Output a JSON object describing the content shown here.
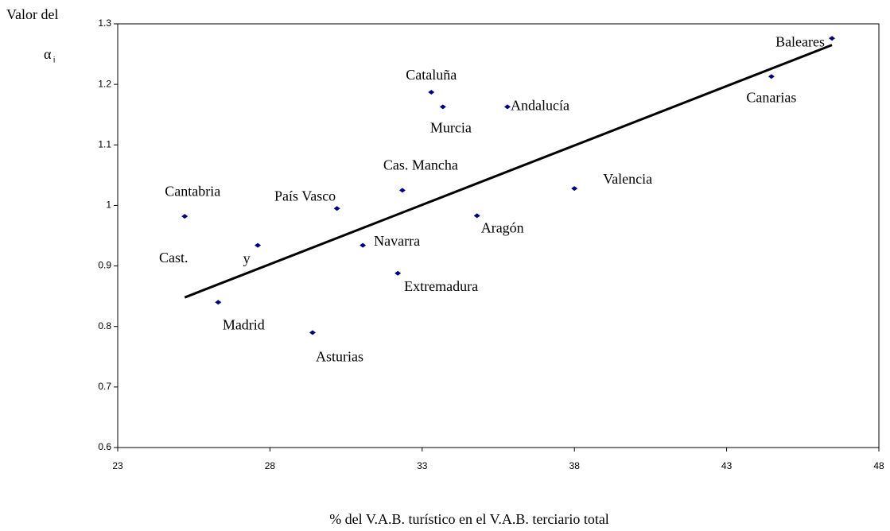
{
  "chart_data": {
    "type": "scatter",
    "y_label": "Valor del",
    "y_symbol": "α",
    "y_symbol_subscript": "i",
    "x_label": "% del V.A.B. turístico en el V.A.B. terciario total",
    "xlim": [
      23,
      48
    ],
    "xticks": [
      23,
      28,
      33,
      38,
      43,
      48
    ],
    "ylim": [
      0.6,
      1.3
    ],
    "yticks": [
      0.6,
      0.7,
      0.8,
      0.9,
      1,
      1.1,
      1.2,
      1.3
    ],
    "color": "#000080",
    "points": [
      {
        "label": "Baleares",
        "x": 46.46,
        "y": 1.276
      },
      {
        "label": "Canarias",
        "x": 44.47,
        "y": 1.213
      },
      {
        "label": "Cataluña",
        "x": 33.3,
        "y": 1.187
      },
      {
        "label": "Murcia",
        "x": 33.68,
        "y": 1.163
      },
      {
        "label": "Andalucía",
        "x": 35.8,
        "y": 1.163
      },
      {
        "label": "Cas. Mancha",
        "x": 32.35,
        "y": 1.025
      },
      {
        "label": "País Vasco",
        "x": 30.2,
        "y": 0.995
      },
      {
        "label": "Valencia",
        "x": 38.0,
        "y": 1.028
      },
      {
        "label": "Aragón",
        "x": 34.8,
        "y": 0.983
      },
      {
        "label": "Cantabria",
        "x": 25.2,
        "y": 0.982
      },
      {
        "label": "Navarra",
        "x": 31.05,
        "y": 0.934
      },
      {
        "label": "y",
        "x": 27.6,
        "y": 0.934
      },
      {
        "label": "Extremadura",
        "x": 32.2,
        "y": 0.888
      },
      {
        "label": "Madrid",
        "x": 26.3,
        "y": 0.84
      },
      {
        "label": "Asturias",
        "x": 29.4,
        "y": 0.79
      }
    ],
    "annotations": [
      "Cast."
    ],
    "trendline": {
      "x": [
        25.2,
        46.46
      ],
      "y": [
        0.848,
        1.265
      ]
    }
  }
}
